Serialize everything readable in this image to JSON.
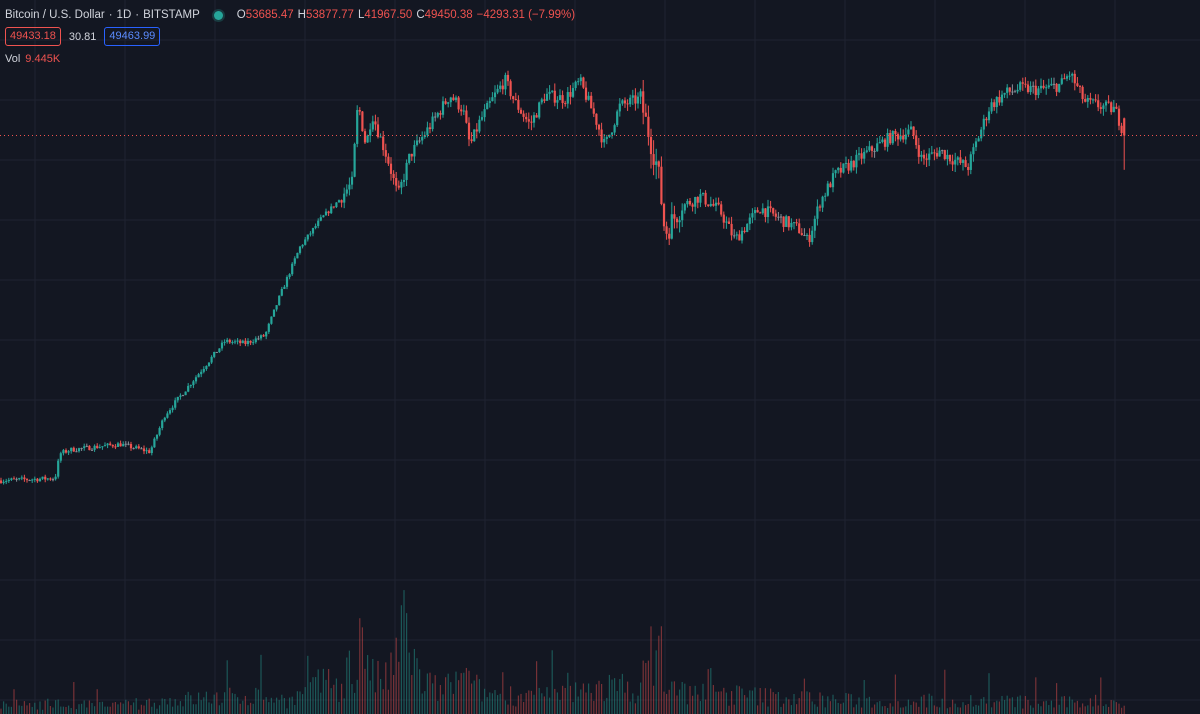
{
  "header": {
    "symbol": "Bitcoin / U.S. Dollar",
    "interval": "1D",
    "exchange": "BITSTAMP",
    "open_label": "O",
    "open": "53685.47",
    "high_label": "H",
    "high": "53877.77",
    "low_label": "L",
    "low": "41967.50",
    "close_label": "C",
    "close": "49450.38",
    "change": "−4293.31 (−7.99%)",
    "bid": "49433.18",
    "spread": "30.81",
    "ask": "49463.99",
    "volume_label": "Vol",
    "volume": "9.445K"
  },
  "colors": {
    "background": "#131722",
    "grid": "#1f2331",
    "up": "#26a69a",
    "down": "#ef5350",
    "doji": "#8a8f99",
    "accent_blue": "#2962ff"
  },
  "chart_data": {
    "type": "candlestick",
    "title": "Bitcoin / U.S. Dollar · 1D · BITSTAMP",
    "current_price": 49450.38,
    "ylim": [
      3200,
      67000
    ],
    "grid": true,
    "legend": "top-left",
    "anchors": [
      [
        0,
        9500
      ],
      [
        55,
        9600
      ],
      [
        60,
        10800
      ],
      [
        70,
        11000
      ],
      [
        120,
        11300
      ],
      [
        150,
        10900
      ],
      [
        165,
        13000
      ],
      [
        195,
        15500
      ],
      [
        225,
        18500
      ],
      [
        245,
        18300
      ],
      [
        265,
        19000
      ],
      [
        280,
        23000
      ],
      [
        300,
        29000
      ],
      [
        320,
        33000
      ],
      [
        340,
        36500
      ],
      [
        352,
        39500
      ],
      [
        358,
        58000
      ],
      [
        366,
        47000
      ],
      [
        372,
        55000
      ],
      [
        388,
        44000
      ],
      [
        398,
        37000
      ],
      [
        410,
        45000
      ],
      [
        428,
        51000
      ],
      [
        450,
        60000
      ],
      [
        463,
        56000
      ],
      [
        470,
        47000
      ],
      [
        480,
        53000
      ],
      [
        495,
        60000
      ],
      [
        505,
        64500
      ],
      [
        515,
        58000
      ],
      [
        530,
        52000
      ],
      [
        545,
        60000
      ],
      [
        565,
        59000
      ],
      [
        580,
        64000
      ],
      [
        595,
        54000
      ],
      [
        605,
        47000
      ],
      [
        620,
        57000
      ],
      [
        640,
        59000
      ],
      [
        658,
        42000
      ],
      [
        665,
        31000
      ],
      [
        680,
        35000
      ],
      [
        700,
        37000
      ],
      [
        720,
        34500
      ],
      [
        735,
        30000
      ],
      [
        760,
        35000
      ],
      [
        800,
        31500
      ],
      [
        808,
        29800
      ],
      [
        820,
        36000
      ],
      [
        835,
        41000
      ],
      [
        850,
        43000
      ],
      [
        870,
        46000
      ],
      [
        890,
        49000
      ],
      [
        912,
        50500
      ],
      [
        922,
        44000
      ],
      [
        940,
        46000
      ],
      [
        950,
        44500
      ],
      [
        968,
        42500
      ],
      [
        975,
        47000
      ],
      [
        990,
        57000
      ],
      [
        1005,
        60500
      ],
      [
        1020,
        62000
      ],
      [
        1040,
        61500
      ],
      [
        1060,
        63000
      ],
      [
        1070,
        66500
      ],
      [
        1085,
        58000
      ],
      [
        1100,
        57000
      ],
      [
        1115,
        56000
      ],
      [
        1125,
        49450
      ]
    ],
    "volume_spikes": [
      [
        0,
        0.3
      ],
      [
        40,
        0.4
      ],
      [
        115,
        0.3
      ],
      [
        165,
        0.5
      ],
      [
        205,
        0.6
      ],
      [
        260,
        0.7
      ],
      [
        290,
        0.5
      ],
      [
        330,
        1.2
      ],
      [
        340,
        1.0
      ],
      [
        350,
        1.8
      ],
      [
        355,
        0.9
      ],
      [
        362,
        4.2
      ],
      [
        368,
        1.4
      ],
      [
        378,
        1.3
      ],
      [
        392,
        1.5
      ],
      [
        405,
        3.5
      ],
      [
        420,
        1.2
      ],
      [
        440,
        0.9
      ],
      [
        460,
        1.3
      ],
      [
        485,
        0.8
      ],
      [
        520,
        0.7
      ],
      [
        560,
        0.7
      ],
      [
        600,
        1.0
      ],
      [
        640,
        1.0
      ],
      [
        660,
        3.1
      ],
      [
        665,
        1.0
      ],
      [
        690,
        0.8
      ],
      [
        740,
        0.7
      ],
      [
        800,
        0.6
      ],
      [
        850,
        0.5
      ],
      [
        900,
        0.5
      ],
      [
        950,
        0.5
      ],
      [
        1000,
        0.5
      ],
      [
        1050,
        0.4
      ],
      [
        1100,
        0.5
      ],
      [
        1125,
        0.4
      ]
    ]
  }
}
